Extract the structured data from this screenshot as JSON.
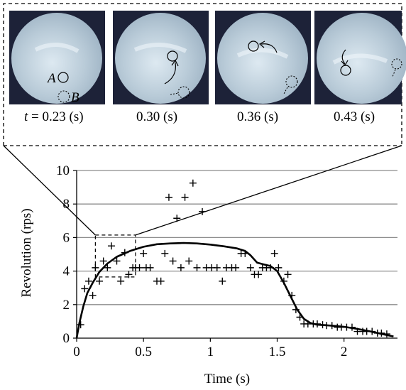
{
  "figure": {
    "frames": [
      {
        "label": "t = 0.23 (s)",
        "label_prefix": "t",
        "label_rest": " = 0.23 (s)",
        "markers": [
          "A",
          "B"
        ]
      },
      {
        "label": "0.30 (s)"
      },
      {
        "label": "0.36 (s)"
      },
      {
        "label": "0.43 (s)"
      }
    ],
    "colors": {
      "frame_bg": "#1d2238",
      "disc": "#b9cbd8",
      "disc_light": "#dde9f1",
      "grid": "#8c8c8c",
      "line": "#000000"
    }
  },
  "chart_data": {
    "type": "line",
    "xlabel": "Time (s)",
    "ylabel": "Revolution (rps)",
    "xlim": [
      0,
      2.4
    ],
    "ylim": [
      0,
      10
    ],
    "xticks": [
      0,
      0.5,
      1,
      1.5,
      2
    ],
    "xtick_labels": [
      "0",
      "0.5",
      "1",
      "1.5",
      "2"
    ],
    "yticks": [
      0,
      2,
      4,
      6,
      8,
      10
    ],
    "ytick_labels": [
      "0",
      "2",
      "4",
      "6",
      "8",
      "10"
    ],
    "grid": "horizontal",
    "series": [
      {
        "type": "scatter",
        "marker": "+",
        "points": [
          [
            0.03,
            0.8
          ],
          [
            0.06,
            2.95
          ],
          [
            0.09,
            3.4
          ],
          [
            0.12,
            2.55
          ],
          [
            0.14,
            4.2
          ],
          [
            0.17,
            3.4
          ],
          [
            0.2,
            4.6
          ],
          [
            0.23,
            4.2
          ],
          [
            0.26,
            5.5
          ],
          [
            0.3,
            4.6
          ],
          [
            0.33,
            3.4
          ],
          [
            0.36,
            5.1
          ],
          [
            0.39,
            3.8
          ],
          [
            0.42,
            4.2
          ],
          [
            0.44,
            4.2
          ],
          [
            0.47,
            4.2
          ],
          [
            0.5,
            5.05
          ],
          [
            0.52,
            4.2
          ],
          [
            0.55,
            4.2
          ],
          [
            0.6,
            3.4
          ],
          [
            0.63,
            3.4
          ],
          [
            0.66,
            5.05
          ],
          [
            0.69,
            8.4
          ],
          [
            0.72,
            4.6
          ],
          [
            0.75,
            7.15
          ],
          [
            0.78,
            4.2
          ],
          [
            0.81,
            8.4
          ],
          [
            0.84,
            4.6
          ],
          [
            0.87,
            9.25
          ],
          [
            0.9,
            4.2
          ],
          [
            0.94,
            7.55
          ],
          [
            0.97,
            4.2
          ],
          [
            1.01,
            4.2
          ],
          [
            1.05,
            4.2
          ],
          [
            1.09,
            3.4
          ],
          [
            1.12,
            4.2
          ],
          [
            1.16,
            4.2
          ],
          [
            1.19,
            4.2
          ],
          [
            1.23,
            5.05
          ],
          [
            1.26,
            5.05
          ],
          [
            1.3,
            4.2
          ],
          [
            1.33,
            3.8
          ],
          [
            1.36,
            3.8
          ],
          [
            1.39,
            4.2
          ],
          [
            1.42,
            4.2
          ],
          [
            1.45,
            4.2
          ],
          [
            1.48,
            5.05
          ],
          [
            1.51,
            4.2
          ],
          [
            1.55,
            3.4
          ],
          [
            1.58,
            3.8
          ],
          [
            1.61,
            2.55
          ],
          [
            1.64,
            1.7
          ],
          [
            1.67,
            1.25
          ],
          [
            1.7,
            0.85
          ],
          [
            1.73,
            0.85
          ],
          [
            1.77,
            0.85
          ],
          [
            1.8,
            0.85
          ],
          [
            1.84,
            0.8
          ],
          [
            1.87,
            0.75
          ],
          [
            1.91,
            0.75
          ],
          [
            1.95,
            0.65
          ],
          [
            1.98,
            0.65
          ],
          [
            2.02,
            0.65
          ],
          [
            2.06,
            0.65
          ],
          [
            2.1,
            0.4
          ],
          [
            2.14,
            0.4
          ],
          [
            2.17,
            0.4
          ],
          [
            2.21,
            0.4
          ],
          [
            2.25,
            0.3
          ],
          [
            2.28,
            0.3
          ],
          [
            2.32,
            0.25
          ]
        ]
      },
      {
        "type": "line",
        "points": [
          [
            0.0,
            0.0
          ],
          [
            0.02,
            0.9
          ],
          [
            0.05,
            1.9
          ],
          [
            0.08,
            2.7
          ],
          [
            0.12,
            3.3
          ],
          [
            0.17,
            3.95
          ],
          [
            0.23,
            4.45
          ],
          [
            0.3,
            4.85
          ],
          [
            0.4,
            5.2
          ],
          [
            0.5,
            5.45
          ],
          [
            0.6,
            5.6
          ],
          [
            0.7,
            5.65
          ],
          [
            0.8,
            5.68
          ],
          [
            0.9,
            5.65
          ],
          [
            1.0,
            5.58
          ],
          [
            1.1,
            5.48
          ],
          [
            1.2,
            5.35
          ],
          [
            1.26,
            5.2
          ],
          [
            1.3,
            4.95
          ],
          [
            1.35,
            4.5
          ],
          [
            1.4,
            4.4
          ],
          [
            1.45,
            4.3
          ],
          [
            1.5,
            4.0
          ],
          [
            1.55,
            3.3
          ],
          [
            1.6,
            2.5
          ],
          [
            1.65,
            1.7
          ],
          [
            1.7,
            1.15
          ],
          [
            1.75,
            0.9
          ],
          [
            1.8,
            0.8
          ],
          [
            1.9,
            0.75
          ],
          [
            2.0,
            0.68
          ],
          [
            2.1,
            0.55
          ],
          [
            2.2,
            0.4
          ],
          [
            2.3,
            0.22
          ],
          [
            2.37,
            0.1
          ]
        ]
      }
    ],
    "zoom_box": {
      "x": [
        0.14,
        0.44
      ],
      "y": [
        3.65,
        6.15
      ]
    }
  }
}
